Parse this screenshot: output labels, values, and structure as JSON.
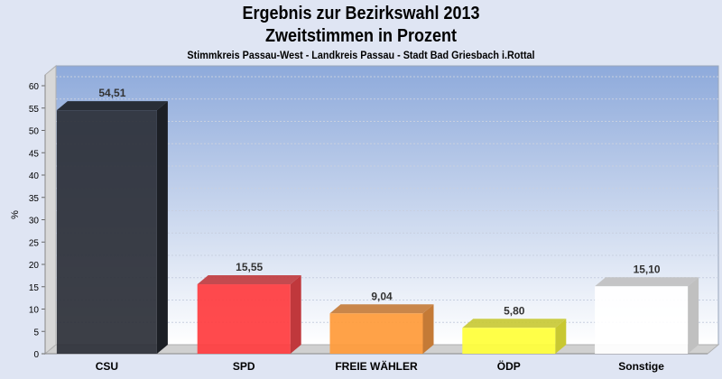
{
  "chart_data": {
    "type": "bar",
    "title": "Ergebnis zur Bezirkswahl 2013",
    "subtitle": "Zweitstimmen in Prozent",
    "caption": "Stimmkreis Passau-West - Landkreis Passau - Stadt Bad Griesbach i.Rottal",
    "xlabel": "",
    "ylabel": "%",
    "ylim": [
      0,
      60
    ],
    "yticks": [
      0,
      5,
      10,
      15,
      20,
      25,
      30,
      35,
      40,
      45,
      50,
      55,
      60
    ],
    "grid": true,
    "categories": [
      "CSU",
      "SPD",
      "FREIE WÄHLER",
      "ÖDP",
      "Sonstige"
    ],
    "values": [
      54.51,
      15.55,
      9.04,
      5.8,
      15.1
    ],
    "value_labels": [
      "54,51",
      "15,55",
      "9,04",
      "5,80",
      "15,10"
    ],
    "colors": [
      "#2b2f37",
      "#ff3b3e",
      "#ff9a38",
      "#ffff38",
      "#ffffff"
    ],
    "side_colors": [
      "#1c1f25",
      "#c0383c",
      "#c47a36",
      "#c8c832",
      "#c0c0c0"
    ]
  }
}
